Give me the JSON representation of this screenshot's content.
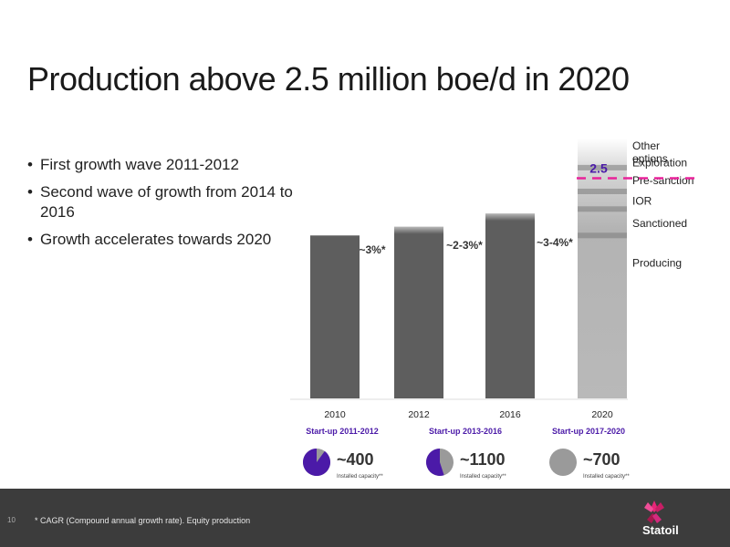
{
  "title": "Production above 2.5 million boe/d in 2020",
  "bullets": [
    "First growth wave 2011-2012",
    "Second wave of growth from 2014 to 2016",
    "Growth accelerates towards 2020"
  ],
  "chart_data": {
    "type": "bar",
    "categories": [
      "2010",
      "2012",
      "2016",
      "2020"
    ],
    "values": [
      1.85,
      1.95,
      2.1,
      2.5
    ],
    "ylim": [
      0,
      2.95
    ],
    "growth_labels": [
      "~3%*",
      "~2-3%*",
      "~3-4%*"
    ],
    "target_label": "2.5",
    "target_value": 2.5,
    "stack_2020": [
      {
        "name": "Producing",
        "band": [
          1.25,
          1.85
        ]
      },
      {
        "name": "Sanctioned",
        "band": [
          1.85,
          2.15
        ]
      },
      {
        "name": "IOR",
        "band": [
          2.15,
          2.35
        ]
      },
      {
        "name": "Pre-sanction",
        "band": [
          2.35,
          2.62
        ]
      },
      {
        "name": "Exploration",
        "band": [
          2.62,
          2.75
        ]
      },
      {
        "name": "Other options",
        "band": [
          2.75,
          2.95
        ]
      }
    ],
    "startups": [
      {
        "label": "Start-up 2011-2012",
        "value": "~400",
        "caption": "Installed capacity**",
        "share": 0.9
      },
      {
        "label": "Start-up 2013-2016",
        "value": "~1100",
        "caption": "Installed capacity**",
        "share": 0.55
      },
      {
        "label": "Start-up 2017-2020",
        "value": "~700",
        "caption": "Installed capacity**",
        "share": 0.0
      }
    ],
    "colors": {
      "bar": "#5e5e5e",
      "bar_light": "#b9b9b9",
      "target": "#e8239a",
      "purple": "#4b1aa8",
      "pie_gray": "#9a9a9a",
      "startup_text": "#4b1aa8",
      "growth_text": "#333333"
    }
  },
  "footer": {
    "page_number": "10",
    "footnote": "* CAGR (Compound annual growth rate). Equity production",
    "logo_text": "Statoil"
  }
}
